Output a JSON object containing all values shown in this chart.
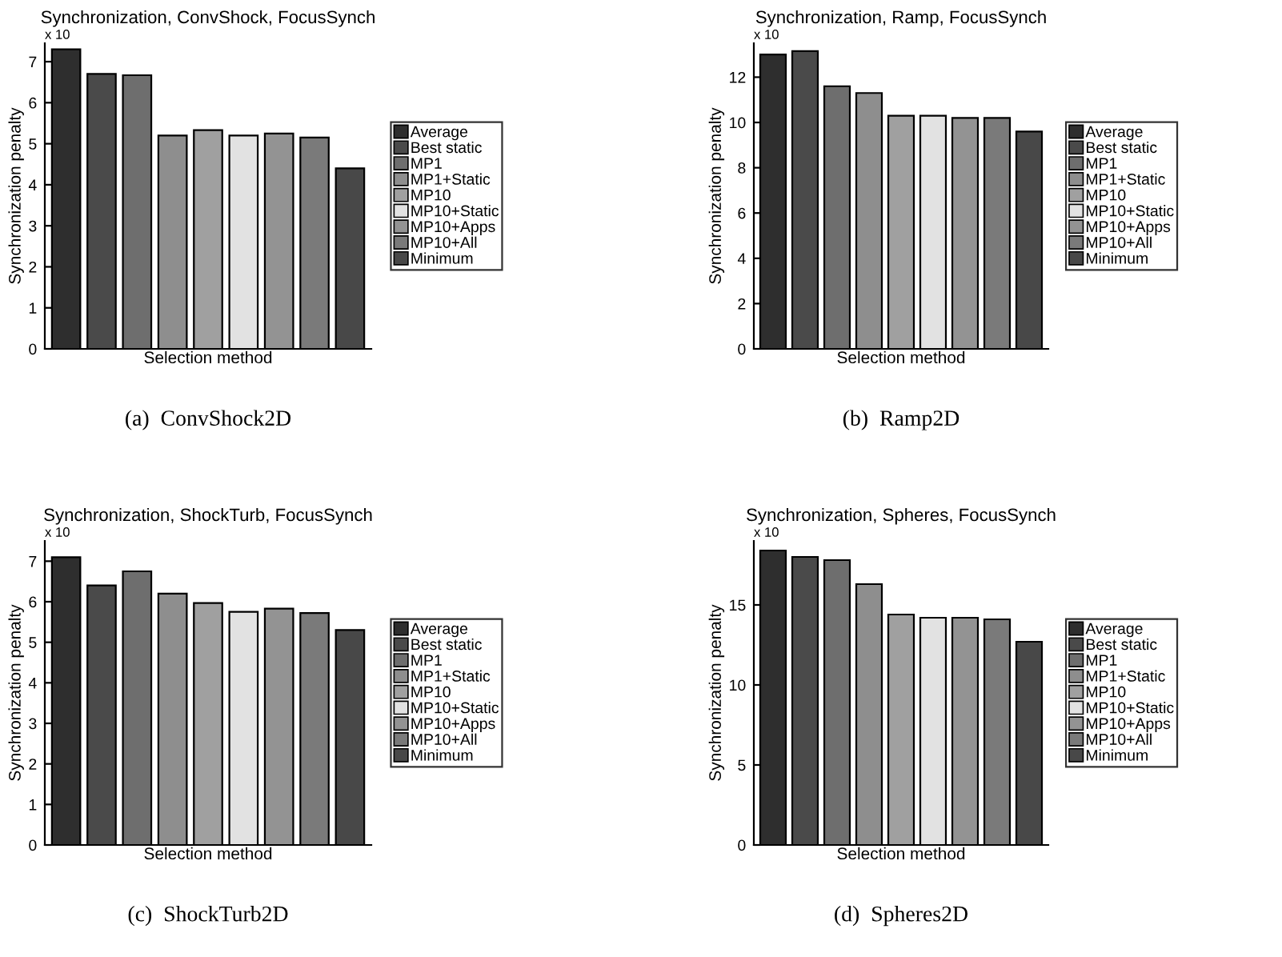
{
  "chart_data": [
    {
      "type": "bar",
      "title": "Synchronization, ConvShock, FocusSynch",
      "xlabel": "Selection method",
      "ylabel": "Synchronization penalty",
      "categories": [
        null
      ],
      "ylim": [
        0,
        7.45
      ],
      "yticks": [
        0,
        1,
        2,
        3,
        4,
        5,
        6,
        7
      ],
      "legend": "right",
      "annotations": [
        "x 10",
        "(a)  ConvShock2D"
      ],
      "series": [
        {
          "name": "Average",
          "color": "#2e2e2e",
          "values": [
            7.3
          ]
        },
        {
          "name": "Best static",
          "color": "#4a4a4a",
          "values": [
            6.7
          ]
        },
        {
          "name": "MP1",
          "color": "#6e6e6e",
          "values": [
            6.67
          ]
        },
        {
          "name": "MP1+Static",
          "color": "#8e8e8e",
          "values": [
            5.2
          ]
        },
        {
          "name": "MP10",
          "color": "#a0a0a0",
          "values": [
            5.33
          ]
        },
        {
          "name": "MP10+Static",
          "color": "#e2e2e2",
          "values": [
            5.2
          ]
        },
        {
          "name": "MP10+Apps",
          "color": "#939393",
          "values": [
            5.25
          ]
        },
        {
          "name": "MP10+All",
          "color": "#7a7a7a",
          "values": [
            5.15
          ]
        },
        {
          "name": "Minimum",
          "color": "#484848",
          "values": [
            4.4
          ]
        }
      ]
    },
    {
      "type": "bar",
      "title": "Synchronization, Ramp, FocusSynch",
      "xlabel": "Selection method",
      "ylabel": "Synchronization penalty",
      "categories": [
        null
      ],
      "ylim": [
        0,
        13.5
      ],
      "yticks": [
        0,
        2,
        4,
        6,
        8,
        10,
        12
      ],
      "legend": "right",
      "annotations": [
        "x 10",
        "(b)  Ramp2D"
      ],
      "series": [
        {
          "name": "Average",
          "color": "#2e2e2e",
          "values": [
            13.0
          ]
        },
        {
          "name": "Best static",
          "color": "#4a4a4a",
          "values": [
            13.15
          ]
        },
        {
          "name": "MP1",
          "color": "#6e6e6e",
          "values": [
            11.6
          ]
        },
        {
          "name": "MP1+Static",
          "color": "#8e8e8e",
          "values": [
            11.3
          ]
        },
        {
          "name": "MP10",
          "color": "#a0a0a0",
          "values": [
            10.3
          ]
        },
        {
          "name": "MP10+Static",
          "color": "#e2e2e2",
          "values": [
            10.3
          ]
        },
        {
          "name": "MP10+Apps",
          "color": "#939393",
          "values": [
            10.2
          ]
        },
        {
          "name": "MP10+All",
          "color": "#7a7a7a",
          "values": [
            10.2
          ]
        },
        {
          "name": "Minimum",
          "color": "#484848",
          "values": [
            9.6
          ]
        }
      ]
    },
    {
      "type": "bar",
      "title": "Synchronization, ShockTurb, FocusSynch",
      "xlabel": "Selection method",
      "ylabel": "Synchronization penalty",
      "categories": [
        null
      ],
      "ylim": [
        0,
        7.5
      ],
      "yticks": [
        0,
        1,
        2,
        3,
        4,
        5,
        6,
        7
      ],
      "legend": "right",
      "annotations": [
        "x 10",
        "(c)  ShockTurb2D"
      ],
      "series": [
        {
          "name": "Average",
          "color": "#2e2e2e",
          "values": [
            7.1
          ]
        },
        {
          "name": "Best static",
          "color": "#4a4a4a",
          "values": [
            6.4
          ]
        },
        {
          "name": "MP1",
          "color": "#6e6e6e",
          "values": [
            6.75
          ]
        },
        {
          "name": "MP1+Static",
          "color": "#8e8e8e",
          "values": [
            6.2
          ]
        },
        {
          "name": "MP10",
          "color": "#a0a0a0",
          "values": [
            5.97
          ]
        },
        {
          "name": "MP10+Static",
          "color": "#e2e2e2",
          "values": [
            5.75
          ]
        },
        {
          "name": "MP10+Apps",
          "color": "#939393",
          "values": [
            5.83
          ]
        },
        {
          "name": "MP10+All",
          "color": "#7a7a7a",
          "values": [
            5.72
          ]
        },
        {
          "name": "Minimum",
          "color": "#484848",
          "values": [
            5.3
          ]
        }
      ]
    },
    {
      "type": "bar",
      "title": "Synchronization, Spheres, FocusSynch",
      "xlabel": "Selection method",
      "ylabel": "Synchronization penalty",
      "categories": [
        null
      ],
      "ylim": [
        0,
        19
      ],
      "yticks": [
        0,
        5,
        10,
        15
      ],
      "legend": "right",
      "annotations": [
        "x 10",
        "(d)  Spheres2D"
      ],
      "series": [
        {
          "name": "Average",
          "color": "#2e2e2e",
          "values": [
            18.4
          ]
        },
        {
          "name": "Best static",
          "color": "#4a4a4a",
          "values": [
            18.0
          ]
        },
        {
          "name": "MP1",
          "color": "#6e6e6e",
          "values": [
            17.8
          ]
        },
        {
          "name": "MP1+Static",
          "color": "#8e8e8e",
          "values": [
            16.3
          ]
        },
        {
          "name": "MP10",
          "color": "#a0a0a0",
          "values": [
            14.4
          ]
        },
        {
          "name": "MP10+Static",
          "color": "#e2e2e2",
          "values": [
            14.2
          ]
        },
        {
          "name": "MP10+Apps",
          "color": "#939393",
          "values": [
            14.2
          ]
        },
        {
          "name": "MP10+All",
          "color": "#7a7a7a",
          "values": [
            14.1
          ]
        },
        {
          "name": "Minimum",
          "color": "#484848",
          "values": [
            12.7
          ]
        }
      ]
    }
  ]
}
